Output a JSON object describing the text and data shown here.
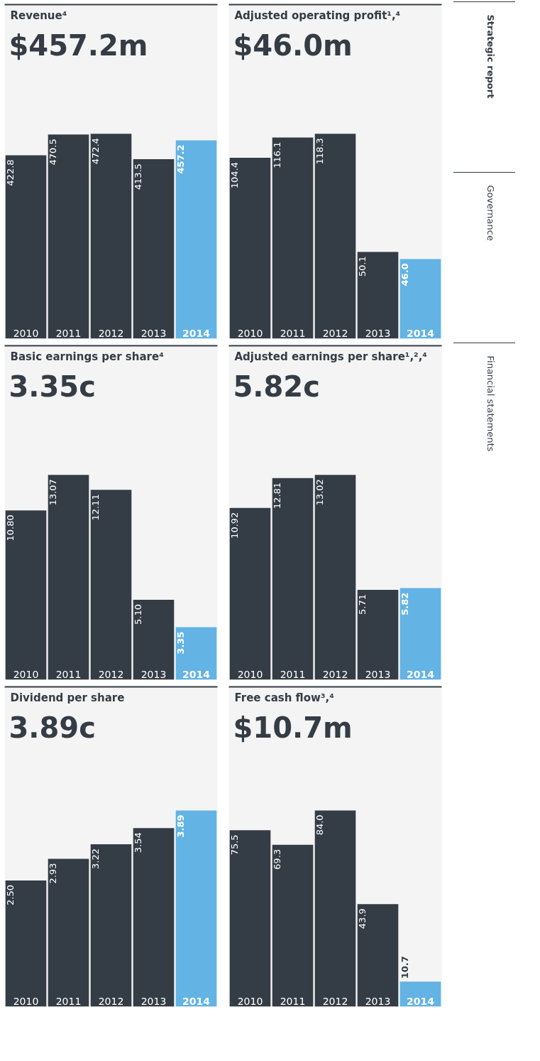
{
  "chart_data": [
    {
      "type": "bar",
      "title": "Revenue⁴",
      "subtitle": "$457.2m",
      "categories": [
        "2010",
        "2011",
        "2012",
        "2013",
        "2014"
      ],
      "values": [
        422.8,
        470.5,
        472.4,
        413.5,
        457.2
      ],
      "value_labels": [
        "422.8",
        "470.5",
        "472.4",
        "413.5",
        "457.2"
      ],
      "colors": [
        "#343c45",
        "#343c45",
        "#343c45",
        "#343c45",
        "#63b3e4"
      ],
      "grid": false,
      "tick_labels": false
    },
    {
      "type": "bar",
      "title": "Adjusted operating profit¹,⁴",
      "subtitle": "$46.0m",
      "categories": [
        "2010",
        "2011",
        "2012",
        "2013",
        "2014"
      ],
      "values": [
        104.4,
        116.1,
        118.3,
        50.1,
        46.0
      ],
      "value_labels": [
        "104.4",
        "116.1",
        "118.3",
        "50.1",
        "46.0"
      ],
      "colors": [
        "#343c45",
        "#343c45",
        "#343c45",
        "#343c45",
        "#63b3e4"
      ],
      "grid": false,
      "tick_labels": false,
      "annotations": [
        "Strategic report",
        "Governance",
        "Financial statements"
      ]
    },
    {
      "type": "bar",
      "title": "Basic earnings per share⁴",
      "subtitle": "3.35c",
      "categories": [
        "2010",
        "2011",
        "2012",
        "2013",
        "2014"
      ],
      "values": [
        10.8,
        13.07,
        12.11,
        5.1,
        3.35
      ],
      "value_labels": [
        "10.80",
        "13.07",
        "12.11",
        "5.10",
        "3.35"
      ],
      "colors": [
        "#343c45",
        "#343c45",
        "#343c45",
        "#343c45",
        "#63b3e4"
      ],
      "grid": false,
      "tick_labels": false
    },
    {
      "type": "bar",
      "title": "Adjusted earnings per share¹,²,⁴",
      "subtitle": "5.82c",
      "categories": [
        "2010",
        "2011",
        "2012",
        "2013",
        "2014"
      ],
      "values": [
        10.92,
        12.81,
        13.02,
        5.71,
        5.82
      ],
      "value_labels": [
        "10.92",
        "12.81",
        "13.02",
        "5.71",
        "5.82"
      ],
      "colors": [
        "#343c45",
        "#343c45",
        "#343c45",
        "#343c45",
        "#63b3e4"
      ],
      "grid": false,
      "tick_labels": false
    },
    {
      "type": "bar",
      "title": "Dividend per share",
      "subtitle": "3.89c",
      "categories": [
        "2010",
        "2011",
        "2012",
        "2013",
        "2014"
      ],
      "values": [
        2.5,
        2.93,
        3.22,
        3.54,
        3.89
      ],
      "value_labels": [
        "2.50",
        "2.93",
        "3.22",
        "3.54",
        "3.89"
      ],
      "colors": [
        "#343c45",
        "#343c45",
        "#343c45",
        "#343c45",
        "#63b3e4"
      ],
      "grid": false,
      "tick_labels": false
    },
    {
      "type": "bar",
      "title": "Free cash flow³,⁴",
      "subtitle": "$10.7m",
      "categories": [
        "2010",
        "2011",
        "2012",
        "2013",
        "2014"
      ],
      "values": [
        75.5,
        69.3,
        84.0,
        43.9,
        10.7
      ],
      "value_labels": [
        "75.5",
        "69.3",
        "84.0",
        "43.9",
        "10.7"
      ],
      "colors": [
        "#343c45",
        "#343c45",
        "#343c45",
        "#343c45",
        "#63b3e4"
      ],
      "grid": false,
      "tick_labels": false
    }
  ]
}
